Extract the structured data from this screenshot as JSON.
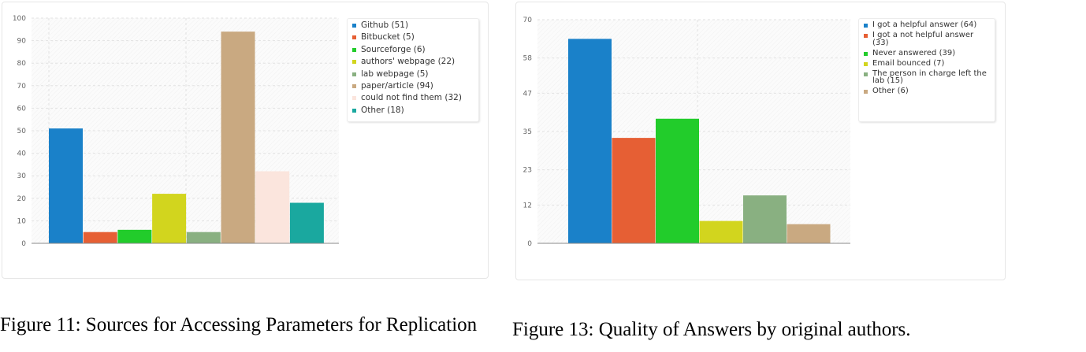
{
  "chart_data": [
    {
      "type": "bar",
      "title": "",
      "xlabel": "",
      "ylabel": "",
      "ylim": [
        0,
        100
      ],
      "yticks": [
        0,
        10,
        20,
        30,
        40,
        50,
        60,
        70,
        80,
        90,
        100
      ],
      "grid": true,
      "legend_position": "right",
      "series": [
        {
          "name": "Github (51)",
          "value": 51,
          "color": "#1a81c9"
        },
        {
          "name": "Bitbucket (5)",
          "value": 5,
          "color": "#e65f34"
        },
        {
          "name": "Sourceforge (6)",
          "value": 6,
          "color": "#22cc2b"
        },
        {
          "name": "authors' webpage (22)",
          "value": 22,
          "color": "#d2d51e"
        },
        {
          "name": "lab webpage (5)",
          "value": 5,
          "color": "#89b081"
        },
        {
          "name": "paper/article (94)",
          "value": 94,
          "color": "#c9a981"
        },
        {
          "name": "could not find them (32)",
          "value": 32,
          "color": "#fbe5dd"
        },
        {
          "name": "Other (18)",
          "value": 18,
          "color": "#1aa89f"
        }
      ]
    },
    {
      "type": "bar",
      "title": "",
      "xlabel": "",
      "ylabel": "",
      "ylim": [
        0,
        70
      ],
      "yticks": [
        0,
        12,
        23,
        35,
        47,
        58,
        70
      ],
      "grid": true,
      "legend_position": "right",
      "series": [
        {
          "name": "I got a helpful answer (64)",
          "value": 64,
          "color": "#1a81c9"
        },
        {
          "name": "I got a not helpful answer (33)",
          "value": 33,
          "color": "#e65f34"
        },
        {
          "name": "Never answered (39)",
          "value": 39,
          "color": "#22cc2b"
        },
        {
          "name": "Email bounced (7)",
          "value": 7,
          "color": "#d2d51e"
        },
        {
          "name": "The person in charge left the lab (15)",
          "value": 15,
          "color": "#89b081"
        },
        {
          "name": "Other (6)",
          "value": 6,
          "color": "#c9a981"
        }
      ]
    }
  ],
  "captions": {
    "left": "Figure 11: Sources for Accessing Parameters for Replication",
    "right": "Figure 13: Quality of Answers by original authors."
  }
}
